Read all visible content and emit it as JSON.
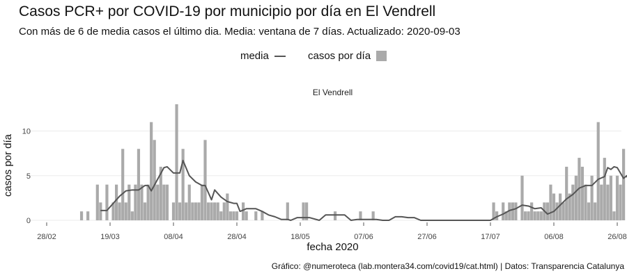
{
  "chart_data": {
    "type": "bar",
    "title": "Casos PCR+ por COVID-19 por municipio por día en El Vendrell",
    "subtitle": "Con más de 6 de media casos el último dia. Media: ventana de 7 días. Actualizado: 2020-09-03",
    "facet_label": "El Vendrell",
    "xlabel": "fecha 2020",
    "ylabel": "casos por día",
    "caption": "Gráfico: @numeroteca (lab.montera34.com/covid19/cat.html) | Datos: Transparencia Catalunya",
    "legend": [
      {
        "name": "media",
        "kind": "line",
        "color": "#555555"
      },
      {
        "name": "casos por día",
        "kind": "bar",
        "color": "#aaaaaa"
      }
    ],
    "legend_position": "top",
    "grid": true,
    "x_start": "2020-02-28",
    "x_end": "2020-08-26",
    "ylim": [
      0,
      13
    ],
    "y_ticks": [
      0,
      5,
      10
    ],
    "x_ticks": [
      "28/02",
      "19/03",
      "08/04",
      "28/04",
      "18/05",
      "07/06",
      "27/06",
      "17/07",
      "06/08",
      "26/08"
    ],
    "x_tick_dates": [
      "2020-02-28",
      "2020-03-19",
      "2020-04-08",
      "2020-04-28",
      "2020-05-18",
      "2020-06-07",
      "2020-06-27",
      "2020-07-17",
      "2020-08-06",
      "2020-08-26"
    ],
    "series": [
      {
        "name": "casos por día",
        "type": "bar",
        "color": "#aaaaaa",
        "points": [
          [
            "2020-03-10",
            1
          ],
          [
            "2020-03-12",
            1
          ],
          [
            "2020-03-15",
            4
          ],
          [
            "2020-03-16",
            2
          ],
          [
            "2020-03-18",
            4
          ],
          [
            "2020-03-20",
            2
          ],
          [
            "2020-03-21",
            4
          ],
          [
            "2020-03-22",
            2
          ],
          [
            "2020-03-23",
            8
          ],
          [
            "2020-03-24",
            2
          ],
          [
            "2020-03-25",
            4
          ],
          [
            "2020-03-26",
            1
          ],
          [
            "2020-03-27",
            4
          ],
          [
            "2020-03-28",
            8
          ],
          [
            "2020-03-29",
            4
          ],
          [
            "2020-03-30",
            2
          ],
          [
            "2020-03-31",
            4
          ],
          [
            "2020-04-01",
            11
          ],
          [
            "2020-04-02",
            9
          ],
          [
            "2020-04-03",
            4
          ],
          [
            "2020-04-04",
            6
          ],
          [
            "2020-04-05",
            4
          ],
          [
            "2020-04-06",
            4
          ],
          [
            "2020-04-08",
            2
          ],
          [
            "2020-04-09",
            13
          ],
          [
            "2020-04-10",
            2
          ],
          [
            "2020-04-11",
            8
          ],
          [
            "2020-04-12",
            2
          ],
          [
            "2020-04-13",
            4
          ],
          [
            "2020-04-14",
            2
          ],
          [
            "2020-04-15",
            2
          ],
          [
            "2020-04-16",
            2
          ],
          [
            "2020-04-17",
            4
          ],
          [
            "2020-04-18",
            9
          ],
          [
            "2020-04-19",
            2
          ],
          [
            "2020-04-20",
            2
          ],
          [
            "2020-04-21",
            2
          ],
          [
            "2020-04-22",
            2
          ],
          [
            "2020-04-23",
            1
          ],
          [
            "2020-04-24",
            2
          ],
          [
            "2020-04-25",
            3
          ],
          [
            "2020-04-26",
            1
          ],
          [
            "2020-04-27",
            1
          ],
          [
            "2020-04-28",
            1
          ],
          [
            "2020-04-30",
            2
          ],
          [
            "2020-05-01",
            1
          ],
          [
            "2020-05-04",
            1
          ],
          [
            "2020-05-06",
            1
          ],
          [
            "2020-05-14",
            2
          ],
          [
            "2020-05-19",
            2
          ],
          [
            "2020-05-20",
            2
          ],
          [
            "2020-05-29",
            1
          ],
          [
            "2020-06-06",
            1
          ],
          [
            "2020-06-10",
            1
          ],
          [
            "2020-07-18",
            2
          ],
          [
            "2020-07-19",
            1
          ],
          [
            "2020-07-21",
            2
          ],
          [
            "2020-07-22",
            1
          ],
          [
            "2020-07-23",
            2
          ],
          [
            "2020-07-24",
            2
          ],
          [
            "2020-07-25",
            2
          ],
          [
            "2020-07-27",
            5
          ],
          [
            "2020-07-28",
            1
          ],
          [
            "2020-07-29",
            1
          ],
          [
            "2020-07-30",
            2
          ],
          [
            "2020-07-31",
            1
          ],
          [
            "2020-08-01",
            1
          ],
          [
            "2020-08-02",
            1
          ],
          [
            "2020-08-03",
            2
          ],
          [
            "2020-08-04",
            2
          ],
          [
            "2020-08-05",
            4
          ],
          [
            "2020-08-06",
            3
          ],
          [
            "2020-08-07",
            2
          ],
          [
            "2020-08-08",
            3
          ],
          [
            "2020-08-09",
            2
          ],
          [
            "2020-08-10",
            6
          ],
          [
            "2020-08-11",
            3
          ],
          [
            "2020-08-12",
            4
          ],
          [
            "2020-08-13",
            5
          ],
          [
            "2020-08-14",
            7
          ],
          [
            "2020-08-15",
            6
          ],
          [
            "2020-08-16",
            4
          ],
          [
            "2020-08-17",
            2
          ],
          [
            "2020-08-18",
            5
          ],
          [
            "2020-08-19",
            2
          ],
          [
            "2020-08-20",
            11
          ],
          [
            "2020-08-21",
            4
          ],
          [
            "2020-08-22",
            7
          ],
          [
            "2020-08-23",
            4
          ],
          [
            "2020-08-24",
            5
          ],
          [
            "2020-08-25",
            1
          ],
          [
            "2020-08-26",
            5
          ],
          [
            "2020-08-27",
            4
          ],
          [
            "2020-08-28",
            8
          ]
        ]
      },
      {
        "name": "media",
        "type": "line",
        "color": "#555555",
        "points": [
          [
            "2020-03-16",
            1.1
          ],
          [
            "2020-03-18",
            1.1
          ],
          [
            "2020-03-20",
            1.9
          ],
          [
            "2020-03-22",
            2.7
          ],
          [
            "2020-03-24",
            3.3
          ],
          [
            "2020-03-26",
            3.4
          ],
          [
            "2020-03-28",
            3.4
          ],
          [
            "2020-03-30",
            3.9
          ],
          [
            "2020-03-31",
            3.9
          ],
          [
            "2020-04-01",
            3.3
          ],
          [
            "2020-04-03",
            4.6
          ],
          [
            "2020-04-05",
            5.9
          ],
          [
            "2020-04-06",
            6.0
          ],
          [
            "2020-04-08",
            5.3
          ],
          [
            "2020-04-10",
            5.3
          ],
          [
            "2020-04-11",
            6.7
          ],
          [
            "2020-04-13",
            5.0
          ],
          [
            "2020-04-15",
            4.3
          ],
          [
            "2020-04-17",
            3.9
          ],
          [
            "2020-04-18",
            3.9
          ],
          [
            "2020-04-20",
            2.3
          ],
          [
            "2020-04-21",
            3.4
          ],
          [
            "2020-04-23",
            2.6
          ],
          [
            "2020-04-25",
            2.1
          ],
          [
            "2020-04-27",
            1.9
          ],
          [
            "2020-04-28",
            1.9
          ],
          [
            "2020-04-29",
            1.0
          ],
          [
            "2020-05-01",
            1.3
          ],
          [
            "2020-05-04",
            1.3
          ],
          [
            "2020-05-06",
            1.0
          ],
          [
            "2020-05-08",
            0.6
          ],
          [
            "2020-05-10",
            0.4
          ],
          [
            "2020-05-12",
            0.1
          ],
          [
            "2020-05-14",
            0.1
          ],
          [
            "2020-05-15",
            0.0
          ],
          [
            "2020-05-17",
            0.3
          ],
          [
            "2020-05-19",
            0.3
          ],
          [
            "2020-05-21",
            0.3
          ],
          [
            "2020-05-24",
            0.0
          ],
          [
            "2020-05-26",
            0.6
          ],
          [
            "2020-05-28",
            0.6
          ],
          [
            "2020-05-30",
            0.6
          ],
          [
            "2020-06-01",
            0.6
          ],
          [
            "2020-06-03",
            0.0
          ],
          [
            "2020-06-05",
            0.1
          ],
          [
            "2020-06-07",
            0.1
          ],
          [
            "2020-06-09",
            0.1
          ],
          [
            "2020-06-11",
            0.1
          ],
          [
            "2020-06-13",
            0.0
          ],
          [
            "2020-06-15",
            0.0
          ],
          [
            "2020-06-17",
            0.4
          ],
          [
            "2020-06-19",
            0.4
          ],
          [
            "2020-06-21",
            0.3
          ],
          [
            "2020-06-23",
            0.3
          ],
          [
            "2020-06-25",
            0.0
          ],
          [
            "2020-07-17",
            0.0
          ],
          [
            "2020-07-19",
            0.4
          ],
          [
            "2020-07-21",
            0.7
          ],
          [
            "2020-07-23",
            1.1
          ],
          [
            "2020-07-25",
            1.3
          ],
          [
            "2020-07-27",
            1.7
          ],
          [
            "2020-07-29",
            1.6
          ],
          [
            "2020-07-31",
            1.3
          ],
          [
            "2020-08-02",
            1.4
          ],
          [
            "2020-08-04",
            0.7
          ],
          [
            "2020-08-06",
            1.0
          ],
          [
            "2020-08-08",
            1.7
          ],
          [
            "2020-08-10",
            2.4
          ],
          [
            "2020-08-12",
            2.9
          ],
          [
            "2020-08-14",
            3.6
          ],
          [
            "2020-08-16",
            3.9
          ],
          [
            "2020-08-18",
            3.9
          ],
          [
            "2020-08-20",
            4.6
          ],
          [
            "2020-08-22",
            4.9
          ],
          [
            "2020-08-23",
            5.9
          ],
          [
            "2020-08-24",
            5.7
          ],
          [
            "2020-08-25",
            6.0
          ],
          [
            "2020-08-26",
            5.9
          ],
          [
            "2020-08-27",
            5.3
          ],
          [
            "2020-08-28",
            4.7
          ],
          [
            "2020-08-29",
            5.0
          ],
          [
            "2020-08-30",
            4.1
          ],
          [
            "2020-08-31",
            4.7
          ]
        ]
      }
    ]
  }
}
